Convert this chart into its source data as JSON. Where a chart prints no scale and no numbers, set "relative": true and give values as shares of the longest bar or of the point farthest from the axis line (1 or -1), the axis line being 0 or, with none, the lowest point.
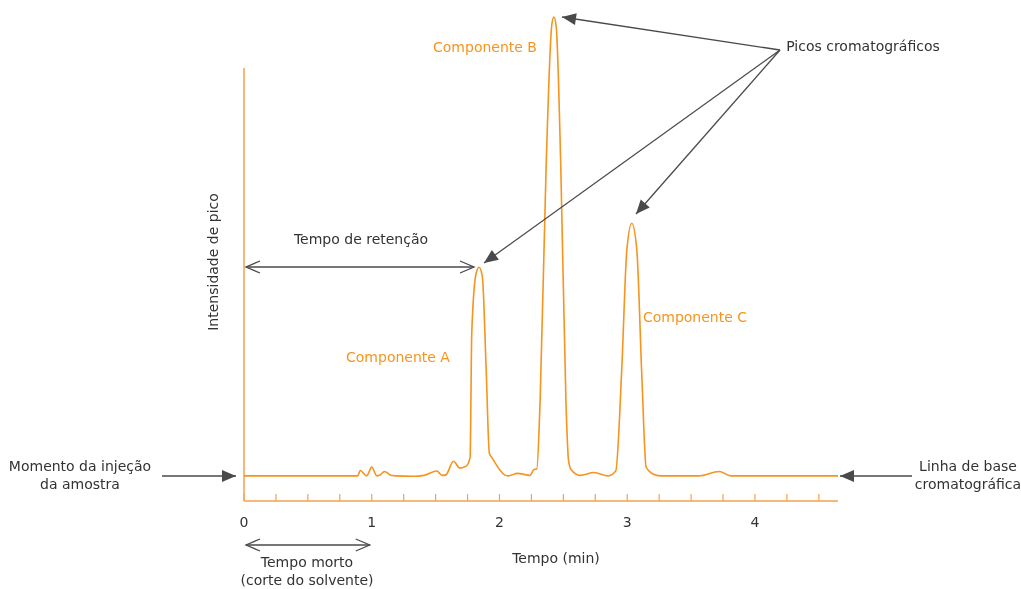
{
  "chart_data": {
    "type": "line",
    "relative": true,
    "xlabel": "Tempo (min)",
    "ylabel": "Intensidade de pico",
    "xlim": [
      0,
      4.65
    ],
    "xticks": [
      0,
      {
        "value": 0.25,
        "label": null
      },
      {
        "value": 0.5,
        "label": null
      },
      {
        "value": 0.75,
        "label": null
      },
      1,
      {
        "value": 1.25,
        "label": null
      },
      {
        "value": 1.5,
        "label": null
      },
      {
        "value": 1.75,
        "label": null
      },
      2,
      {
        "value": 2.25,
        "label": null
      },
      {
        "value": 2.5,
        "label": null
      },
      {
        "value": 2.75,
        "label": null
      },
      3,
      {
        "value": 3.25,
        "label": null
      },
      {
        "value": 3.5,
        "label": null
      },
      {
        "value": 3.75,
        "label": null
      },
      4,
      {
        "value": 4.25,
        "label": null
      },
      {
        "value": 4.5,
        "label": null
      }
    ],
    "marker": "none",
    "line_style": "solid",
    "series": [
      {
        "color": "#f7941d",
        "x": [
          0,
          0.89,
          0.91,
          0.96,
          1.0,
          1.04,
          1.06,
          1.1,
          1.15,
          1.18,
          1.33,
          1.41,
          1.51,
          1.55,
          1.58,
          1.64,
          1.69,
          1.74,
          1.77,
          1.783,
          1.817,
          1.84,
          1.866,
          1.895,
          1.921,
          1.94,
          2.04,
          2.07,
          2.14,
          2.24,
          2.27,
          2.292,
          2.318,
          2.365,
          2.41,
          2.426,
          2.444,
          2.48,
          2.52,
          2.54,
          2.56,
          2.63,
          2.74,
          2.85,
          2.91,
          2.958,
          2.997,
          3.036,
          3.075,
          3.114,
          3.148,
          3.21,
          3.27,
          3.56,
          3.72,
          3.81,
          4.65
        ],
        "values": [
          0.052,
          0.052,
          0.063,
          0.052,
          0.07,
          0.052,
          0.053,
          0.061,
          0.053,
          0.052,
          0.051,
          0.053,
          0.062,
          0.053,
          0.054,
          0.082,
          0.068,
          0.072,
          0.09,
          0.347,
          0.47,
          0.483,
          0.463,
          0.278,
          0.098,
          0.09,
          0.054,
          0.052,
          0.057,
          0.053,
          0.065,
          0.066,
          0.207,
          0.69,
          0.985,
          1,
          0.98,
          0.69,
          0.207,
          0.085,
          0.065,
          0.053,
          0.059,
          0.052,
          0.062,
          0.278,
          0.519,
          0.574,
          0.519,
          0.261,
          0.07,
          0.055,
          0.052,
          0.052,
          0.061,
          0.052,
          0.052
        ]
      }
    ],
    "annotations": [
      "Componente A",
      "Componente B",
      "Componente C",
      "Picos cromatográficos",
      "Tempo de retenção",
      "Momento da injeção\nda amostra",
      "Linha de base\ncromatográfica",
      "Tempo morto\n(corte do solvente)"
    ]
  }
}
